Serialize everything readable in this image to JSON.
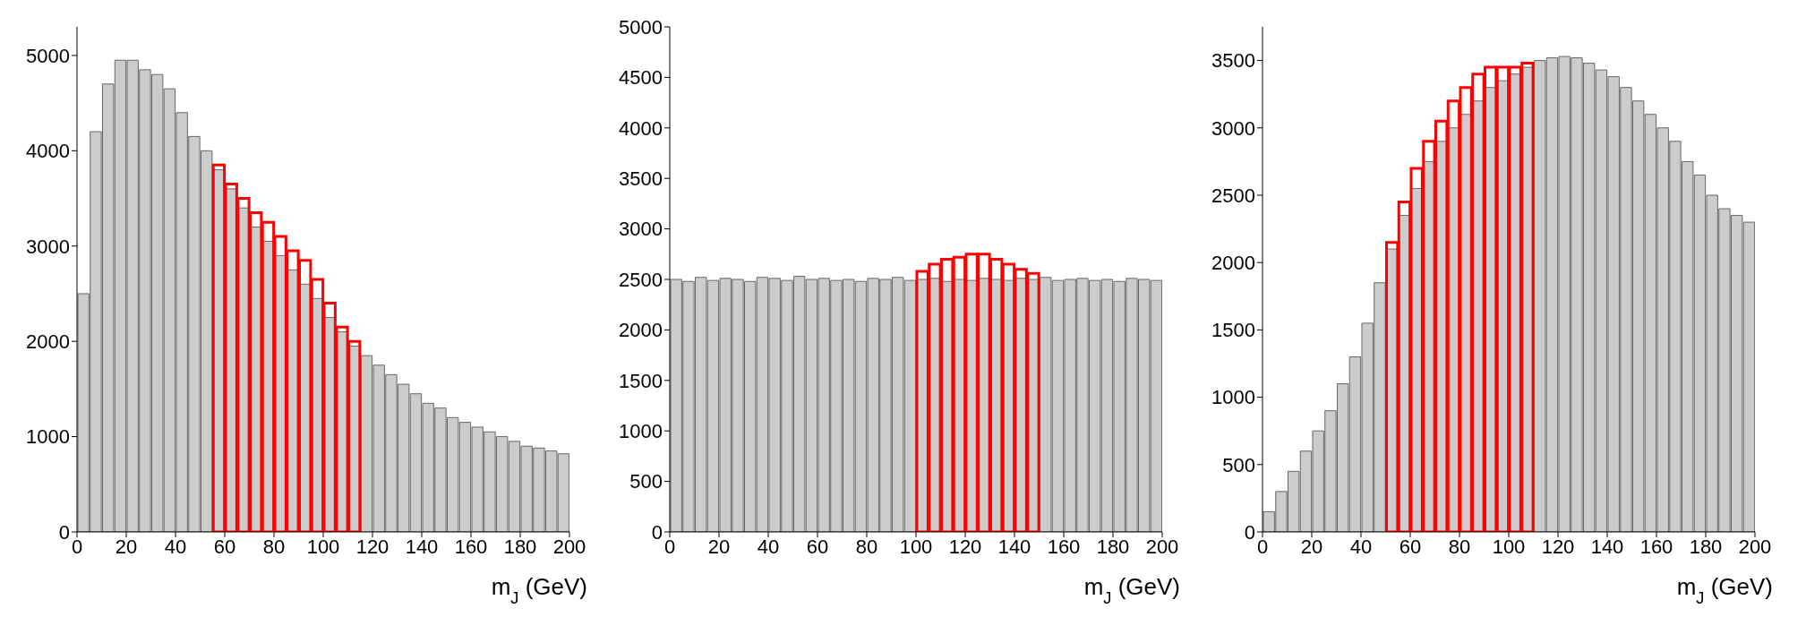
{
  "chart_data": [
    {
      "type": "histogram",
      "xlabel": "m$_{J}$ (GeV)",
      "bins": [
        0,
        5,
        10,
        15,
        20,
        25,
        30,
        35,
        40,
        45,
        50,
        55,
        60,
        65,
        70,
        75,
        80,
        85,
        90,
        95,
        100,
        105,
        110,
        115,
        120,
        125,
        130,
        135,
        140,
        145,
        150,
        155,
        160,
        165,
        170,
        175,
        180,
        185,
        190,
        195,
        200
      ],
      "xlim": [
        0,
        200
      ],
      "xticks": [
        0,
        20,
        40,
        60,
        80,
        100,
        120,
        140,
        160,
        180,
        200
      ],
      "ylim": [
        0,
        5300
      ],
      "yticks": [
        0,
        1000,
        2000,
        3000,
        4000,
        5000
      ],
      "series": [
        {
          "color": "#cccccc",
          "values": [
            2500,
            4200,
            4700,
            4950,
            4950,
            4850,
            4800,
            4650,
            4400,
            4150,
            4000,
            3800,
            3600,
            3400,
            3200,
            3050,
            2900,
            2750,
            2600,
            2450,
            2250,
            2100,
            1950,
            1850,
            1750,
            1650,
            1550,
            1450,
            1350,
            1300,
            1200,
            1150,
            1100,
            1050,
            1000,
            950,
            900,
            880,
            850,
            820
          ]
        },
        {
          "color": "#ff0000",
          "values": [
            null,
            null,
            null,
            null,
            null,
            null,
            null,
            null,
            null,
            null,
            null,
            3850,
            3650,
            3500,
            3350,
            3250,
            3100,
            2950,
            2850,
            2650,
            2400,
            2150,
            2000,
            null,
            null,
            null,
            null,
            null,
            null,
            null,
            null,
            null,
            null,
            null,
            null,
            null,
            null,
            null,
            null,
            null
          ]
        }
      ]
    },
    {
      "type": "histogram",
      "xlabel": "m$_{J}$ (GeV)",
      "bins": [
        0,
        5,
        10,
        15,
        20,
        25,
        30,
        35,
        40,
        45,
        50,
        55,
        60,
        65,
        70,
        75,
        80,
        85,
        90,
        95,
        100,
        105,
        110,
        115,
        120,
        125,
        130,
        135,
        140,
        145,
        150,
        155,
        160,
        165,
        170,
        175,
        180,
        185,
        190,
        195,
        200
      ],
      "xlim": [
        0,
        200
      ],
      "xticks": [
        0,
        20,
        40,
        60,
        80,
        100,
        120,
        140,
        160,
        180,
        200
      ],
      "ylim": [
        0,
        5000
      ],
      "yticks": [
        0,
        500,
        1000,
        1500,
        2000,
        2500,
        3000,
        3500,
        4000,
        4500,
        5000
      ],
      "series": [
        {
          "color": "#cccccc",
          "values": [
            2500,
            2480,
            2520,
            2490,
            2510,
            2500,
            2480,
            2520,
            2510,
            2490,
            2530,
            2500,
            2510,
            2490,
            2500,
            2480,
            2510,
            2500,
            2520,
            2490,
            2500,
            2510,
            2480,
            2500,
            2490,
            2510,
            2500,
            2490,
            2510,
            2500,
            2520,
            2490,
            2500,
            2510,
            2490,
            2500,
            2480,
            2510,
            2500,
            2490
          ]
        },
        {
          "color": "#ff0000",
          "values": [
            null,
            null,
            null,
            null,
            null,
            null,
            null,
            null,
            null,
            null,
            null,
            null,
            null,
            null,
            null,
            null,
            null,
            null,
            null,
            null,
            2580,
            2650,
            2700,
            2720,
            2750,
            2750,
            2700,
            2650,
            2600,
            2560,
            null,
            null,
            null,
            null,
            null,
            null,
            null,
            null,
            null,
            null
          ]
        }
      ]
    },
    {
      "type": "histogram",
      "xlabel": "m$_{J}$ (GeV)",
      "bins": [
        0,
        5,
        10,
        15,
        20,
        25,
        30,
        35,
        40,
        45,
        50,
        55,
        60,
        65,
        70,
        75,
        80,
        85,
        90,
        95,
        100,
        105,
        110,
        115,
        120,
        125,
        130,
        135,
        140,
        145,
        150,
        155,
        160,
        165,
        170,
        175,
        180,
        185,
        190,
        195,
        200
      ],
      "xlim": [
        0,
        200
      ],
      "xticks": [
        0,
        20,
        40,
        60,
        80,
        100,
        120,
        140,
        160,
        180,
        200
      ],
      "ylim": [
        0,
        3750
      ],
      "yticks": [
        0,
        500,
        1000,
        1500,
        2000,
        2500,
        3000,
        3500
      ],
      "series": [
        {
          "color": "#cccccc",
          "values": [
            150,
            300,
            450,
            600,
            750,
            900,
            1100,
            1300,
            1550,
            1850,
            2100,
            2350,
            2550,
            2750,
            2900,
            3000,
            3100,
            3200,
            3300,
            3350,
            3400,
            3450,
            3500,
            3520,
            3530,
            3520,
            3480,
            3430,
            3380,
            3300,
            3200,
            3100,
            3000,
            2900,
            2750,
            2650,
            2500,
            2400,
            2350,
            2300
          ]
        },
        {
          "color": "#ff0000",
          "values": [
            null,
            null,
            null,
            null,
            null,
            null,
            null,
            null,
            null,
            null,
            2150,
            2450,
            2700,
            2900,
            3050,
            3200,
            3300,
            3400,
            3450,
            3450,
            3450,
            3480,
            null,
            null,
            null,
            null,
            null,
            null,
            null,
            null,
            null,
            null,
            null,
            null,
            null,
            null,
            null,
            null,
            null,
            null
          ]
        }
      ]
    }
  ]
}
